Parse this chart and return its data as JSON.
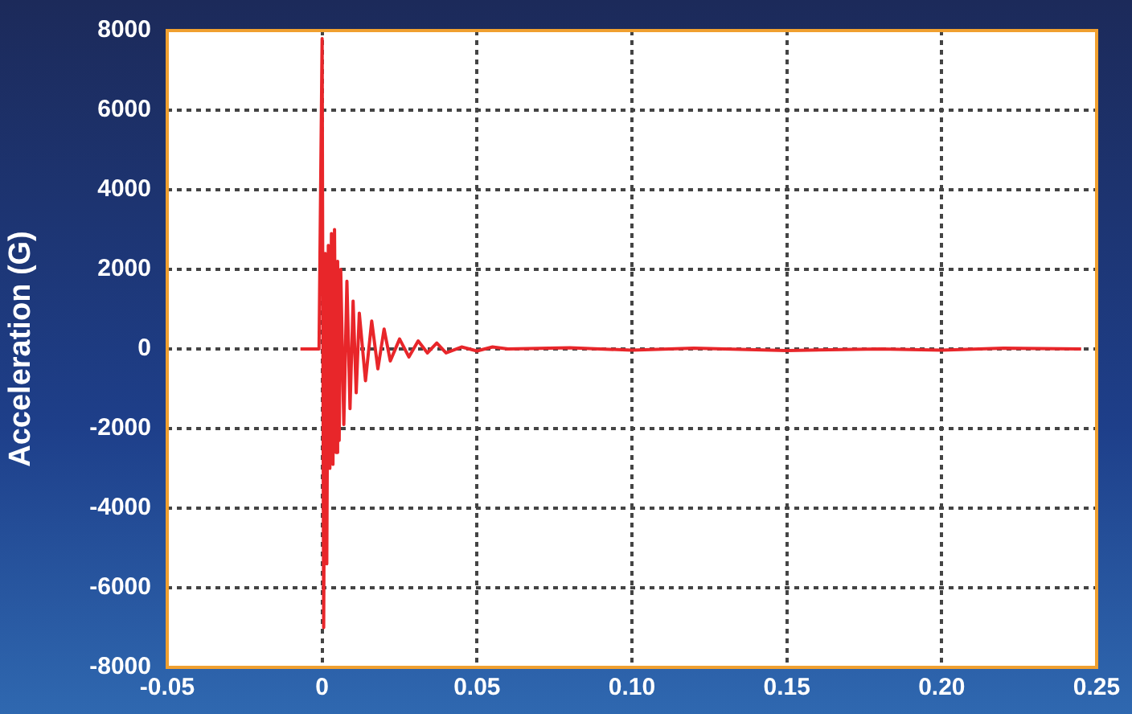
{
  "chart_data": {
    "type": "line",
    "ylabel": "Acceleration (G)",
    "x": [
      -0.007,
      -0.001,
      0,
      0.0005,
      0.001,
      0.0015,
      0.002,
      0.0025,
      0.003,
      0.0035,
      0.004,
      0.0045,
      0.005,
      0.0055,
      0.006,
      0.007,
      0.008,
      0.009,
      0.01,
      0.011,
      0.012,
      0.014,
      0.016,
      0.018,
      0.02,
      0.022,
      0.025,
      0.028,
      0.031,
      0.034,
      0.037,
      0.04,
      0.045,
      0.05,
      0.055,
      0.06,
      0.08,
      0.1,
      0.12,
      0.15,
      0.18,
      0.2,
      0.22,
      0.245
    ],
    "series": [
      {
        "color": "#e8262a",
        "values": [
          0,
          0,
          7800,
          -7000,
          2400,
          -5400,
          2600,
          -3000,
          2900,
          -2900,
          3000,
          -2600,
          2200,
          -2300,
          2000,
          -1900,
          1700,
          -1500,
          1200,
          -1100,
          900,
          -800,
          700,
          -500,
          500,
          -300,
          250,
          -200,
          200,
          -100,
          150,
          -100,
          50,
          -50,
          50,
          0,
          30,
          -30,
          20,
          -40,
          0,
          -30,
          20,
          0
        ]
      }
    ],
    "xlim": [
      -0.05,
      0.25
    ],
    "xticks": [
      -0.05,
      0,
      0.05,
      {
        "value": 0.1,
        "label": "0.10"
      },
      0.15,
      {
        "value": 0.2,
        "label": "0.20"
      },
      0.25
    ],
    "ylim": [
      -8000,
      8000
    ],
    "yticks": [
      -8000,
      -6000,
      -4000,
      -2000,
      0,
      2000,
      4000,
      6000,
      8000
    ],
    "grid": true,
    "legend": false,
    "marker": "none",
    "line_style": "solid"
  }
}
